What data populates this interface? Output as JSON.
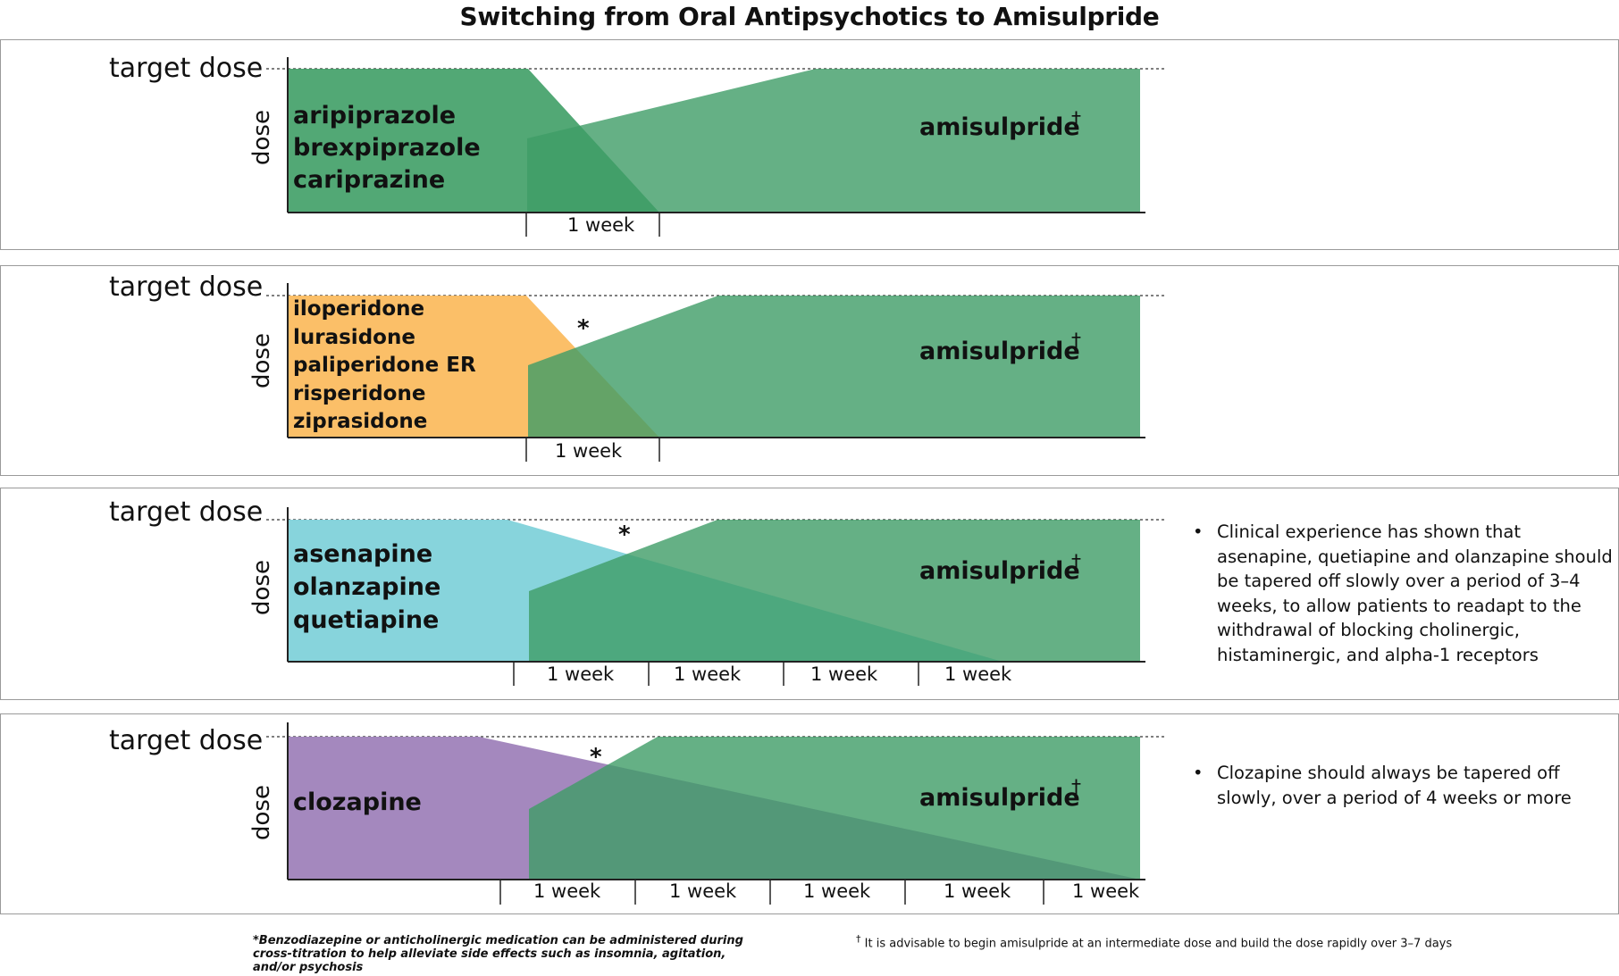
{
  "title": "Switching from Oral Antipsychotics to Amisulpride",
  "axis": {
    "target_label": "target dose",
    "y_label": "dose"
  },
  "colors": {
    "amisulpride": "#3f9c66",
    "aripiprazole_group": "#3a9c62",
    "iloperidone_group": "#fbb858",
    "asenapine_group": "#81d2da",
    "clozapine": "#9f82bb"
  },
  "panels": [
    {
      "drugs": [
        "aripiprazole",
        "brexpiprazole",
        "cariprazine"
      ],
      "new_drug": "amisulpride",
      "dagger": "†",
      "asterisk": "",
      "weeks": [
        "1 week"
      ],
      "note": ""
    },
    {
      "drugs": [
        "iloperidone",
        "lurasidone",
        "paliperidone ER",
        "risperidone",
        "ziprasidone"
      ],
      "new_drug": "amisulpride",
      "dagger": "†",
      "asterisk": "*",
      "weeks": [
        "1 week"
      ],
      "note": ""
    },
    {
      "drugs": [
        "asenapine",
        "olanzapine",
        "quetiapine"
      ],
      "new_drug": "amisulpride",
      "dagger": "†",
      "asterisk": "*",
      "weeks": [
        "1 week",
        "1 week",
        "1 week",
        "1 week"
      ],
      "note": "Clinical experience has shown that asenapine, quetiapine and olanzapine should be tapered off slowly over a period of 3–4 weeks, to allow patients to readapt to the withdrawal of blocking cholinergic, histaminergic, and alpha-1 receptors"
    },
    {
      "drugs": [
        "clozapine"
      ],
      "new_drug": "amisulpride",
      "dagger": "†",
      "asterisk": "*",
      "weeks": [
        "1 week",
        "1 week",
        "1 week",
        "1 week",
        "1 week"
      ],
      "note": "Clozapine should always be tapered off slowly, over a period of 4 weeks or more"
    }
  ],
  "footnotes": {
    "asterisk": "*Benzodiazepine or anticholinergic medication can be administered during cross-titration to help alleviate side effects such as insomnia, agitation, and/or psychosis",
    "dagger_mark": "†",
    "dagger": "It is advisable to begin amisulpride at an intermediate dose and build the dose rapidly over 3–7 days"
  }
}
